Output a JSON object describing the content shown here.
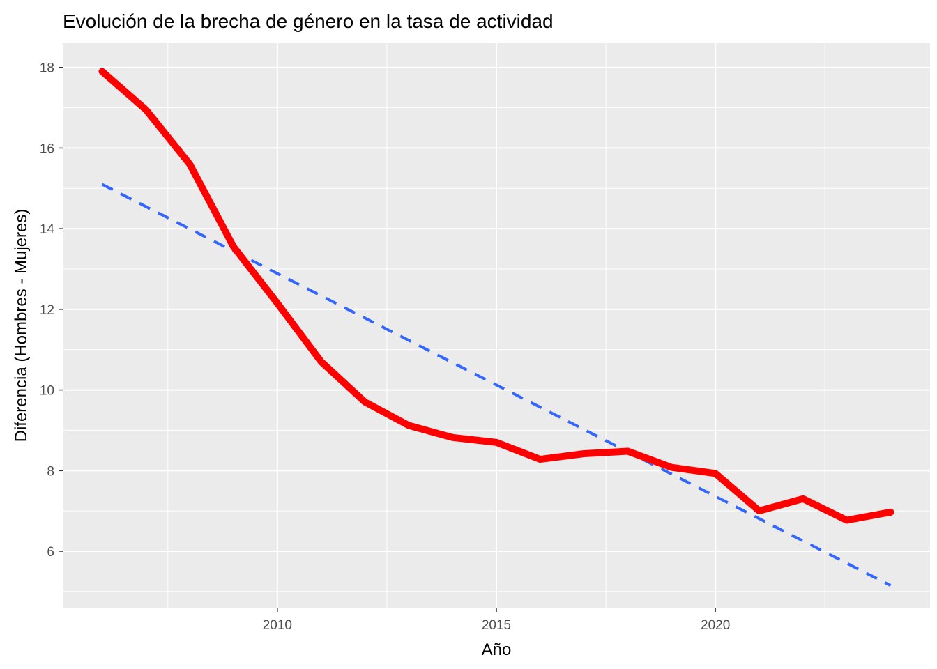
{
  "chart_data": {
    "type": "line",
    "title": "Evolución de la brecha de género en la tasa de actividad",
    "xlabel": "Año",
    "ylabel": "Diferencia (Hombres - Mujeres)",
    "xlim": [
      2005.1,
      2024.9
    ],
    "ylim": [
      4.6,
      18.6
    ],
    "x_ticks": [
      2010,
      2015,
      2020
    ],
    "x_tick_labels": [
      "2010",
      "2015",
      "2020"
    ],
    "y_ticks": [
      6,
      8,
      10,
      12,
      14,
      16,
      18
    ],
    "y_tick_labels": [
      "6",
      "8",
      "10",
      "12",
      "14",
      "16",
      "18"
    ],
    "grid": true,
    "legend": "none",
    "series": [
      {
        "kind": "line",
        "color": "#ff0000",
        "line_style": "solid",
        "x": [
          2006,
          2007,
          2008,
          2009,
          2010,
          2011,
          2012,
          2013,
          2014,
          2015,
          2016,
          2017,
          2018,
          2019,
          2020,
          2021,
          2022,
          2023,
          2024
        ],
        "values": [
          17.9,
          16.95,
          15.6,
          13.55,
          12.15,
          10.7,
          9.7,
          9.12,
          8.82,
          8.7,
          8.28,
          8.42,
          8.48,
          8.08,
          7.93,
          7.0,
          7.3,
          6.77,
          6.97
        ]
      },
      {
        "kind": "trend",
        "color": "#3366ff",
        "line_style": "dashed",
        "x": [
          2006,
          2024
        ],
        "values": [
          15.1,
          5.15
        ]
      }
    ]
  }
}
